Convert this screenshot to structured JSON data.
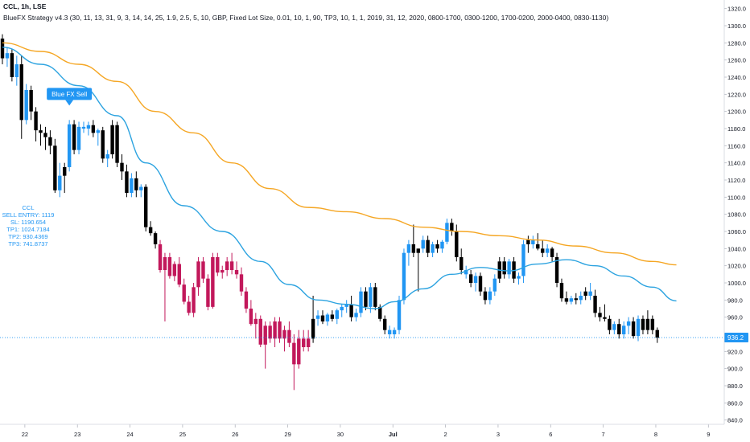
{
  "header": {
    "title": "CCL, 1h, LSE",
    "strategy_line": "BlueFX Strategy v4.3 (30, 11, 13, 31, 9, 3, 14, 14, 25, 1.9, 2.5, 5, 10, GBP, Fixed Lot Size, 0.01, 10, 1, 90, TP3, 10, 1, 1, 2019, 31, 12, 2020, 0800-1700, 0300-1200, 1700-0200, 2000-0400, 0830-1130)"
  },
  "signal_label": "Blue FX Sell",
  "trade_info": {
    "symbol": "CCL",
    "sell_entry": "SELL ENTRY: 1119",
    "sl": "SL: 1190.654",
    "tp1": "TP1: 1024.7184",
    "tp2": "TP2: 930.4369",
    "tp3": "TP3: 741.8737"
  },
  "last_price_label": "936.2",
  "colors": {
    "up": "#2196f3",
    "down_filled": "#000000",
    "down_red": "#c2185b",
    "ma_fast": "#2ca3e0",
    "ma_slow": "#f5a623",
    "price_line": "#2196f3",
    "axis_text": "#131722"
  },
  "chart_data": {
    "type": "candlestick",
    "ylim": [
      835,
      1330
    ],
    "y_ticks": [
      840,
      860,
      880,
      900,
      920,
      940,
      960,
      980,
      1000,
      1020,
      1040,
      1060,
      1080,
      1100,
      1120,
      1140,
      1160,
      1180,
      1200,
      1220,
      1240,
      1260,
      1280,
      1300,
      1320
    ],
    "x_ticks": [
      {
        "label": "22",
        "i": 2
      },
      {
        "label": "23",
        "i": 13
      },
      {
        "label": "24",
        "i": 24
      },
      {
        "label": "25",
        "i": 35
      },
      {
        "label": "26",
        "i": 46
      },
      {
        "label": "29",
        "i": 57
      },
      {
        "label": "30",
        "i": 68
      },
      {
        "label": "Jul",
        "i": 79
      },
      {
        "label": "2",
        "i": 90
      },
      {
        "label": "3",
        "i": 101
      },
      {
        "label": "6",
        "i": 112
      },
      {
        "label": "7",
        "i": 123
      },
      {
        "label": "8",
        "i": 134
      },
      {
        "label": "9",
        "i": 145
      }
    ],
    "candles": [
      [
        1285,
        1290,
        1255,
        1262,
        "d"
      ],
      [
        1262,
        1275,
        1252,
        1268,
        "u"
      ],
      [
        1268,
        1273,
        1235,
        1240,
        "d"
      ],
      [
        1240,
        1265,
        1230,
        1255,
        "u"
      ],
      [
        1255,
        1265,
        1168,
        1190,
        "d"
      ],
      [
        1190,
        1232,
        1185,
        1225,
        "u"
      ],
      [
        1225,
        1230,
        1190,
        1200,
        "d"
      ],
      [
        1200,
        1205,
        1165,
        1178,
        "d"
      ],
      [
        1178,
        1185,
        1160,
        1175,
        "d"
      ],
      [
        1175,
        1182,
        1155,
        1170,
        "d"
      ],
      [
        1170,
        1178,
        1150,
        1160,
        "d"
      ],
      [
        1160,
        1168,
        1105,
        1108,
        "d"
      ],
      [
        1108,
        1140,
        1100,
        1125,
        "u"
      ],
      [
        1125,
        1140,
        1105,
        1135,
        "d"
      ],
      [
        1135,
        1190,
        1130,
        1185,
        "u"
      ],
      [
        1185,
        1190,
        1150,
        1155,
        "d"
      ],
      [
        1155,
        1188,
        1150,
        1182,
        "u"
      ],
      [
        1182,
        1188,
        1175,
        1180,
        "u"
      ],
      [
        1180,
        1188,
        1172,
        1184,
        "u"
      ],
      [
        1184,
        1190,
        1170,
        1175,
        "d"
      ],
      [
        1175,
        1180,
        1160,
        1178,
        "u"
      ],
      [
        1178,
        1182,
        1140,
        1145,
        "d"
      ],
      [
        1145,
        1155,
        1135,
        1150,
        "u"
      ],
      [
        1150,
        1190,
        1145,
        1184,
        "d"
      ],
      [
        1184,
        1188,
        1135,
        1140,
        "d"
      ],
      [
        1140,
        1150,
        1120,
        1130,
        "d"
      ],
      [
        1130,
        1138,
        1100,
        1105,
        "d"
      ],
      [
        1105,
        1128,
        1100,
        1122,
        "u"
      ],
      [
        1122,
        1130,
        1100,
        1108,
        "d"
      ],
      [
        1108,
        1115,
        1100,
        1112,
        "u"
      ],
      [
        1112,
        1115,
        1060,
        1065,
        "d"
      ],
      [
        1065,
        1072,
        1055,
        1058,
        "d"
      ],
      [
        1058,
        1060,
        1040,
        1045,
        "d"
      ],
      [
        1045,
        1050,
        1012,
        1015,
        "r"
      ],
      [
        1015,
        1035,
        955,
        1030,
        "r"
      ],
      [
        1030,
        1035,
        1005,
        1008,
        "r"
      ],
      [
        1008,
        1025,
        1002,
        1022,
        "r"
      ],
      [
        1022,
        1030,
        995,
        998,
        "r"
      ],
      [
        998,
        1005,
        975,
        978,
        "r"
      ],
      [
        978,
        985,
        962,
        965,
        "r"
      ],
      [
        965,
        1000,
        960,
        995,
        "r"
      ],
      [
        995,
        1030,
        985,
        1025,
        "r"
      ],
      [
        1025,
        1030,
        1000,
        1005,
        "r"
      ],
      [
        1005,
        1010,
        968,
        972,
        "r"
      ],
      [
        972,
        1035,
        970,
        1030,
        "r"
      ],
      [
        1030,
        1035,
        1008,
        1012,
        "r"
      ],
      [
        1012,
        1020,
        1005,
        1015,
        "r"
      ],
      [
        1015,
        1030,
        1008,
        1025,
        "r"
      ],
      [
        1025,
        1035,
        1010,
        1015,
        "r"
      ],
      [
        1015,
        1025,
        1005,
        1010,
        "r"
      ],
      [
        1010,
        1018,
        985,
        990,
        "r"
      ],
      [
        990,
        995,
        965,
        970,
        "r"
      ],
      [
        970,
        980,
        950,
        952,
        "r"
      ],
      [
        952,
        965,
        935,
        958,
        "r"
      ],
      [
        958,
        962,
        925,
        928,
        "r"
      ],
      [
        928,
        955,
        900,
        950,
        "r"
      ],
      [
        950,
        955,
        930,
        935,
        "r"
      ],
      [
        935,
        960,
        925,
        955,
        "r"
      ],
      [
        955,
        960,
        930,
        935,
        "r"
      ],
      [
        935,
        950,
        920,
        945,
        "r"
      ],
      [
        945,
        955,
        925,
        930,
        "r"
      ],
      [
        930,
        940,
        875,
        905,
        "r"
      ],
      [
        905,
        945,
        900,
        935,
        "r"
      ],
      [
        935,
        945,
        920,
        925,
        "r"
      ],
      [
        925,
        945,
        920,
        935,
        "r"
      ],
      [
        935,
        985,
        930,
        958,
        "d"
      ],
      [
        958,
        968,
        950,
        962,
        "u"
      ],
      [
        962,
        968,
        952,
        955,
        "d"
      ],
      [
        955,
        965,
        950,
        963,
        "u"
      ],
      [
        963,
        968,
        955,
        958,
        "d"
      ],
      [
        958,
        970,
        952,
        968,
        "u"
      ],
      [
        968,
        975,
        960,
        972,
        "u"
      ],
      [
        972,
        980,
        965,
        975,
        "u"
      ],
      [
        975,
        985,
        955,
        960,
        "d"
      ],
      [
        960,
        970,
        955,
        965,
        "u"
      ],
      [
        965,
        995,
        960,
        990,
        "u"
      ],
      [
        990,
        995,
        968,
        972,
        "d"
      ],
      [
        972,
        1000,
        965,
        995,
        "u"
      ],
      [
        995,
        1000,
        968,
        972,
        "d"
      ],
      [
        972,
        975,
        955,
        958,
        "d"
      ],
      [
        958,
        962,
        940,
        945,
        "d"
      ],
      [
        945,
        950,
        935,
        940,
        "u"
      ],
      [
        940,
        948,
        935,
        945,
        "u"
      ],
      [
        945,
        985,
        940,
        980,
        "u"
      ],
      [
        980,
        1040,
        975,
        1035,
        "u"
      ],
      [
        1035,
        1050,
        1020,
        1045,
        "u"
      ],
      [
        1045,
        1068,
        1030,
        1035,
        "d"
      ],
      [
        1035,
        1040,
        990,
        1040,
        "d"
      ],
      [
        1040,
        1055,
        1035,
        1050,
        "u"
      ],
      [
        1050,
        1055,
        1030,
        1035,
        "d"
      ],
      [
        1035,
        1048,
        1030,
        1045,
        "u"
      ],
      [
        1045,
        1050,
        1035,
        1040,
        "d"
      ],
      [
        1040,
        1050,
        1035,
        1048,
        "u"
      ],
      [
        1048,
        1075,
        1045,
        1070,
        "u"
      ],
      [
        1070,
        1075,
        1055,
        1060,
        "d"
      ],
      [
        1060,
        1068,
        1025,
        1030,
        "d"
      ],
      [
        1030,
        1040,
        1010,
        1015,
        "d"
      ],
      [
        1015,
        1020,
        1005,
        1010,
        "u"
      ],
      [
        1010,
        1015,
        995,
        1000,
        "d"
      ],
      [
        1000,
        1012,
        990,
        1008,
        "u"
      ],
      [
        1008,
        1012,
        985,
        990,
        "d"
      ],
      [
        990,
        995,
        975,
        980,
        "d"
      ],
      [
        980,
        995,
        975,
        990,
        "u"
      ],
      [
        990,
        1010,
        985,
        1005,
        "u"
      ],
      [
        1005,
        1030,
        1000,
        1025,
        "d"
      ],
      [
        1025,
        1030,
        1005,
        1010,
        "d"
      ],
      [
        1010,
        1028,
        1005,
        1025,
        "u"
      ],
      [
        1025,
        1030,
        1000,
        1005,
        "d"
      ],
      [
        1005,
        1012,
        998,
        1008,
        "u"
      ],
      [
        1008,
        1050,
        1000,
        1045,
        "u"
      ],
      [
        1045,
        1055,
        1035,
        1050,
        "d"
      ],
      [
        1050,
        1055,
        1040,
        1045,
        "u"
      ],
      [
        1045,
        1058,
        1038,
        1040,
        "d"
      ],
      [
        1040,
        1050,
        1030,
        1035,
        "d"
      ],
      [
        1035,
        1045,
        1030,
        1040,
        "u"
      ],
      [
        1040,
        1042,
        1025,
        1030,
        "d"
      ],
      [
        1030,
        1035,
        995,
        1000,
        "d"
      ],
      [
        1000,
        1005,
        978,
        982,
        "d"
      ],
      [
        982,
        990,
        975,
        978,
        "d"
      ],
      [
        978,
        985,
        975,
        982,
        "u"
      ],
      [
        982,
        988,
        975,
        980,
        "d"
      ],
      [
        980,
        990,
        975,
        985,
        "u"
      ],
      [
        985,
        995,
        980,
        990,
        "d"
      ],
      [
        990,
        1000,
        980,
        985,
        "u"
      ],
      [
        985,
        992,
        960,
        965,
        "d"
      ],
      [
        965,
        972,
        955,
        960,
        "d"
      ],
      [
        960,
        975,
        955,
        958,
        "d"
      ],
      [
        958,
        962,
        940,
        945,
        "d"
      ],
      [
        945,
        955,
        940,
        952,
        "u"
      ],
      [
        952,
        958,
        935,
        940,
        "d"
      ],
      [
        940,
        955,
        935,
        950,
        "u"
      ],
      [
        950,
        960,
        940,
        955,
        "u"
      ],
      [
        955,
        960,
        935,
        938,
        "d"
      ],
      [
        938,
        962,
        932,
        958,
        "u"
      ],
      [
        958,
        962,
        940,
        945,
        "d"
      ],
      [
        945,
        968,
        940,
        958,
        "d"
      ],
      [
        958,
        962,
        940,
        945,
        "d"
      ],
      [
        945,
        948,
        930,
        936,
        "d"
      ]
    ],
    "ma_fast": [
      [
        0,
        1275
      ],
      [
        8,
        1255
      ],
      [
        16,
        1230
      ],
      [
        24,
        1195
      ],
      [
        30,
        1140
      ],
      [
        38,
        1090
      ],
      [
        46,
        1060
      ],
      [
        54,
        1025
      ],
      [
        60,
        998
      ],
      [
        66,
        980
      ],
      [
        72,
        975
      ],
      [
        78,
        970
      ],
      [
        82,
        978
      ],
      [
        88,
        993
      ],
      [
        94,
        1010
      ],
      [
        100,
        1018
      ],
      [
        106,
        1014
      ],
      [
        112,
        1022
      ],
      [
        118,
        1027
      ],
      [
        124,
        1020
      ],
      [
        130,
        1008
      ],
      [
        136,
        995
      ],
      [
        141,
        979
      ]
    ],
    "ma_slow": [
      [
        0,
        1280
      ],
      [
        8,
        1270
      ],
      [
        16,
        1255
      ],
      [
        24,
        1235
      ],
      [
        32,
        1200
      ],
      [
        40,
        1175
      ],
      [
        48,
        1140
      ],
      [
        56,
        1110
      ],
      [
        64,
        1088
      ],
      [
        72,
        1083
      ],
      [
        80,
        1075
      ],
      [
        88,
        1065
      ],
      [
        96,
        1060
      ],
      [
        104,
        1055
      ],
      [
        112,
        1050
      ],
      [
        120,
        1043
      ],
      [
        128,
        1035
      ],
      [
        136,
        1025
      ],
      [
        141,
        1021
      ]
    ],
    "last_price": 936.2,
    "signal_index": 14
  }
}
